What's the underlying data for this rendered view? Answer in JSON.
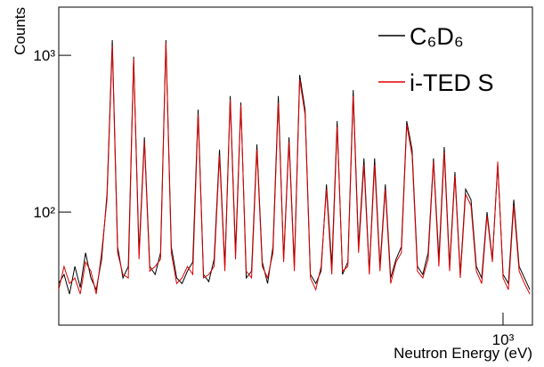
{
  "chart_data": {
    "type": "line",
    "xlabel": "Neutron Energy (eV)",
    "ylabel": "Counts",
    "xscale": "log",
    "yscale": "log",
    "grid": false,
    "legend": "upper right",
    "xlim": [
      237,
      1100
    ],
    "ylim": [
      19,
      2030
    ],
    "xticks": [
      {
        "value": 1000,
        "label": "10³"
      }
    ],
    "yticks": [
      {
        "value": 100,
        "label": "10²"
      },
      {
        "value": 1000,
        "label": "10³"
      }
    ],
    "x": [
      237,
      241.1,
      245.4,
      249.7,
      254.1,
      258.5,
      263.0,
      267.6,
      272.3,
      277.1,
      281.9,
      286.8,
      291.8,
      296.9,
      302.1,
      307.4,
      312.8,
      318.3,
      323.9,
      329.6,
      335.4,
      341.3,
      347.3,
      353.4,
      359.6,
      365.9,
      372.3,
      378.8,
      385.4,
      392.1,
      399.0,
      406.0,
      413.1,
      420.3,
      427.6,
      435.1,
      442.7,
      450.4,
      458.3,
      466.3,
      474.5,
      482.8,
      491.2,
      499.8,
      508.5,
      517.4,
      526.5,
      535.7,
      545.1,
      554.6,
      564.3,
      574.2,
      584.2,
      594.4,
      604.8,
      615.4,
      626.2,
      637.2,
      648.3,
      659.6,
      671.2,
      682.9,
      694.9,
      707.0,
      719.4,
      732.0,
      744.8,
      757.8,
      771.1,
      784.6,
      798.3,
      812.3,
      826.5,
      841.0,
      855.7,
      870.7,
      885.9,
      901.4,
      917.2,
      933.2,
      949.5,
      966.1,
      983.0,
      1000.2,
      1017.7,
      1035.5,
      1053.6,
      1072.0,
      1090.8
    ],
    "series": [
      {
        "name": "C₆D₆",
        "color": "#000000",
        "values": [
          35,
          40,
          30,
          45,
          33,
          55,
          38,
          32,
          50,
          130,
          1250,
          60,
          38,
          45,
          980,
          55,
          300,
          45,
          40,
          55,
          1250,
          60,
          38,
          35,
          42,
          48,
          450,
          40,
          36,
          50,
          250,
          45,
          550,
          55,
          500,
          38,
          42,
          270,
          48,
          35,
          60,
          550,
          50,
          300,
          45,
          750,
          450,
          40,
          35,
          42,
          150,
          45,
          380,
          40,
          48,
          600,
          60,
          220,
          42,
          220,
          45,
          150,
          38,
          50,
          60,
          380,
          250,
          45,
          40,
          55,
          220,
          50,
          260,
          45,
          180,
          40,
          140,
          120,
          45,
          38,
          100,
          50,
          200,
          40,
          35,
          120,
          45,
          38,
          32
        ]
      },
      {
        "name": "i-TED S",
        "color": "#e00000",
        "values": [
          32,
          45,
          35,
          38,
          30,
          48,
          42,
          30,
          55,
          120,
          1150,
          55,
          40,
          38,
          950,
          50,
          280,
          42,
          45,
          50,
          1200,
          55,
          35,
          38,
          45,
          40,
          420,
          38,
          40,
          45,
          230,
          42,
          520,
          50,
          480,
          42,
          38,
          250,
          45,
          38,
          55,
          500,
          48,
          280,
          42,
          700,
          420,
          38,
          32,
          45,
          140,
          40,
          350,
          42,
          45,
          550,
          55,
          200,
          40,
          200,
          42,
          140,
          35,
          48,
          55,
          360,
          230,
          42,
          38,
          50,
          210,
          45,
          240,
          42,
          170,
          38,
          130,
          110,
          42,
          35,
          95,
          48,
          210,
          38,
          32,
          110,
          42,
          35,
          30
        ]
      }
    ]
  }
}
